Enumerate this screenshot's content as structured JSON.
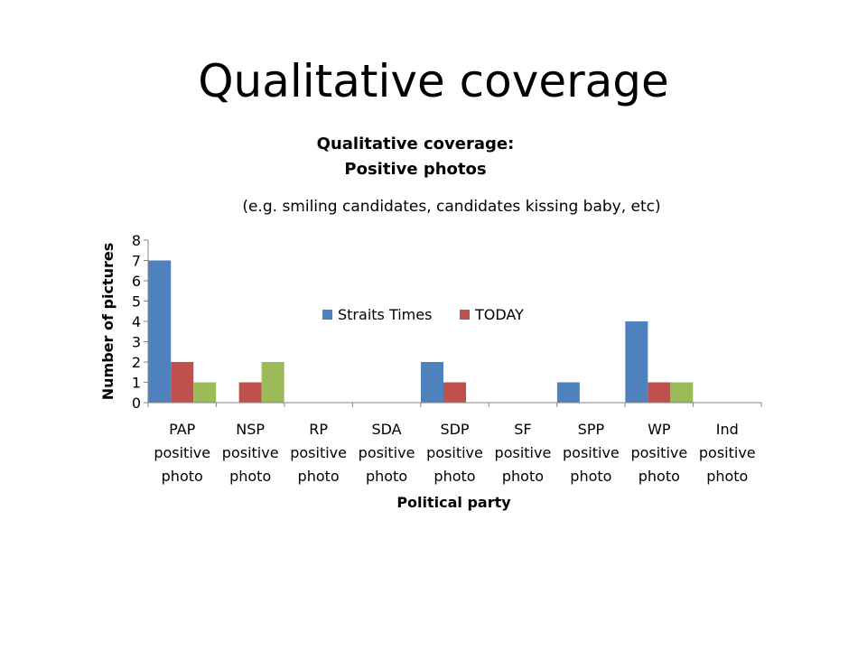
{
  "slide": {
    "title": "Qualitative coverage"
  },
  "chart_data": {
    "type": "bar",
    "title_line1": "Qualitative coverage:",
    "title_line2": "Positive photos",
    "subtitle": "(e.g. smiling candidates, candidates kissing baby, etc)",
    "xlabel": "Political party",
    "ylabel": "Number of pictures",
    "ylim": [
      0,
      8
    ],
    "yticks": [
      0,
      1,
      2,
      3,
      4,
      5,
      6,
      7,
      8
    ],
    "grid": false,
    "legend_placement": "inside-top-center",
    "categories": [
      [
        "PAP",
        "positive",
        "photo"
      ],
      [
        "NSP",
        "positive",
        "photo"
      ],
      [
        "RP",
        "positive",
        "photo"
      ],
      [
        "SDA",
        "positive",
        "photo"
      ],
      [
        "SDP",
        "positive",
        "photo"
      ],
      [
        "SF",
        "positive",
        "photo"
      ],
      [
        "SPP",
        "positive",
        "photo"
      ],
      [
        "WP",
        "positive",
        "photo"
      ],
      [
        "Ind",
        "positive",
        "photo"
      ]
    ],
    "series": [
      {
        "name": "Straits Times",
        "color": "#4F81BD",
        "values": [
          7,
          0,
          0,
          0,
          2,
          0,
          1,
          4,
          0
        ]
      },
      {
        "name": "TODAY",
        "color": "#C0504D",
        "values": [
          2,
          1,
          0,
          0,
          1,
          0,
          0,
          1,
          0
        ]
      },
      {
        "color": "#9BBB59",
        "values": [
          1,
          2,
          0,
          0,
          0,
          0,
          0,
          1,
          0
        ]
      }
    ]
  }
}
